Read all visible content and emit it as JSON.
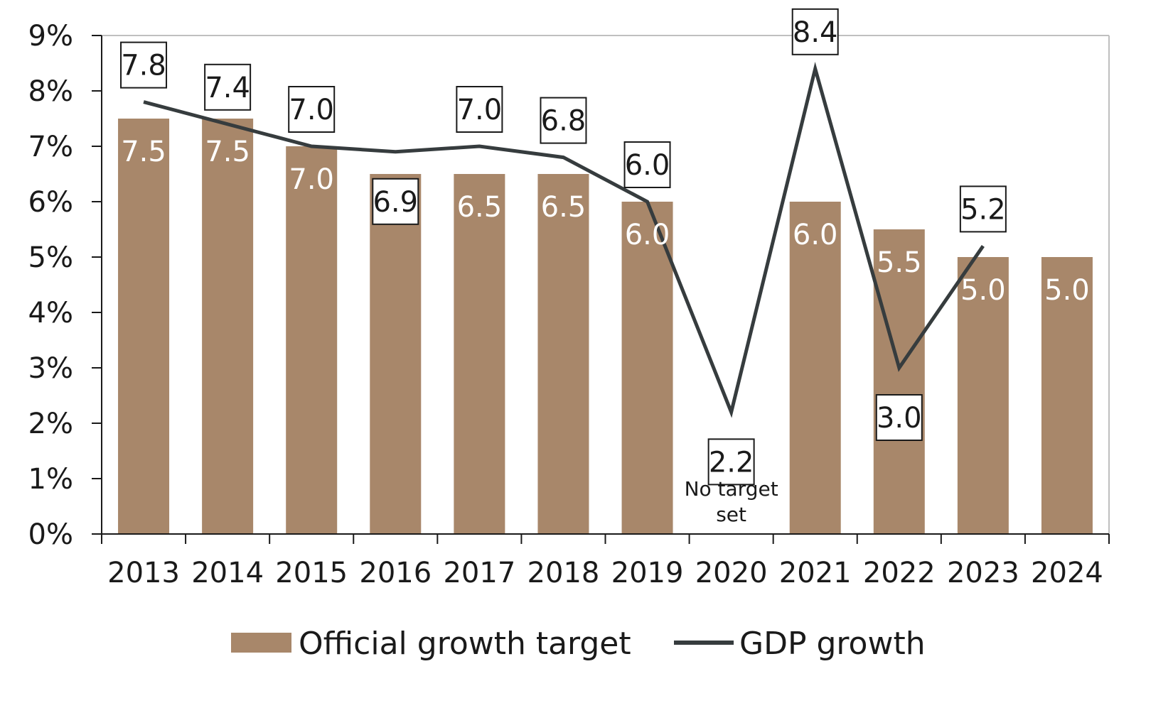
{
  "chart_data": {
    "type": "bar",
    "categories": [
      "2013",
      "2014",
      "2015",
      "2016",
      "2017",
      "2018",
      "2019",
      "2020",
      "2021",
      "2022",
      "2023",
      "2024"
    ],
    "y_ticks": [
      "0%",
      "1%",
      "2%",
      "3%",
      "4%",
      "5%",
      "6%",
      "7%",
      "8%",
      "9%"
    ],
    "ylim": [
      0,
      9
    ],
    "grid": false,
    "legend_placement": "bottom",
    "series": [
      {
        "name": "Official growth target",
        "type": "bar",
        "color": "#a8876a",
        "values": [
          7.5,
          7.5,
          7.0,
          6.5,
          6.5,
          6.5,
          6.0,
          null,
          6.0,
          5.5,
          5.0,
          5.0
        ],
        "labels": [
          "7.5",
          "7.5",
          "7.0",
          "6.5",
          "6.5",
          "6.5",
          "6.0",
          null,
          "6.0",
          "5.5",
          "5.0",
          "5.0"
        ]
      },
      {
        "name": "GDP growth",
        "type": "line",
        "color": "#363c3e",
        "values": [
          7.8,
          7.4,
          7.0,
          6.9,
          7.0,
          6.8,
          6.0,
          2.2,
          8.4,
          3.0,
          5.2,
          null
        ],
        "labels": [
          "7.8",
          "7.4",
          "7.0",
          "6.9",
          "7.0",
          "6.8",
          "6.0",
          "2.2",
          "8.4",
          "3.0",
          "5.2",
          null
        ]
      }
    ],
    "annotations": [
      {
        "category": "2020",
        "lines": [
          "No target",
          "set"
        ]
      }
    ]
  }
}
